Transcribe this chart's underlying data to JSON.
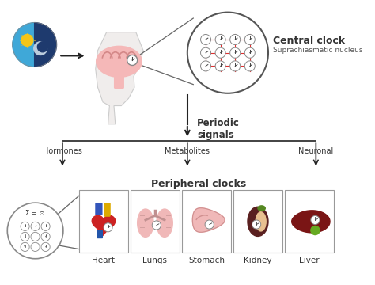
{
  "bg_color": "#ffffff",
  "title_central": "Central clock",
  "subtitle_central": "Suprachiasmatic nucleus",
  "label_periodic": "Periodic\nsignals",
  "label_hormones": "Hormones",
  "label_metabolites": "Metabolites",
  "label_neuronal": "Neuronal",
  "label_peripheral": "Peripheral clocks",
  "label_sigma": "Σ = ⊙",
  "organs": [
    "Heart",
    "Lungs",
    "Stomach",
    "Kidney",
    "Liver"
  ],
  "arrow_color": "#222222",
  "text_color": "#333333",
  "brain_color": "#f5b8b8",
  "brain_fold_color": "#d48888",
  "organ_border": "#999999",
  "sun_color": "#f5c518",
  "day_bg": "#3fa8d8",
  "night_bg": "#1e3a6e",
  "moon_color": "#ccddee",
  "red_line_color": "#e03030",
  "clock_face": "#ffffff",
  "clock_border": "#888888",
  "clock_hand": "#444444",
  "bubble_border": "#555555",
  "head_color": "#f0edec",
  "head_border": "#cccccc",
  "sigma_border": "#888888",
  "heart_color": "#cc2222",
  "heart_blue": "#3355bb",
  "heart_yellow": "#ddaa00",
  "heart_blue2": "#2255aa",
  "lung_color": "#f0b8b8",
  "lung_detail": "#c09090",
  "stomach_color": "#f0b8b8",
  "kidney_dark": "#5a2020",
  "kidney_light": "#e8c090",
  "kidney_green": "#558822",
  "liver_color": "#7a1515",
  "liver_green": "#66aa22",
  "box_bg": "#ffffff"
}
